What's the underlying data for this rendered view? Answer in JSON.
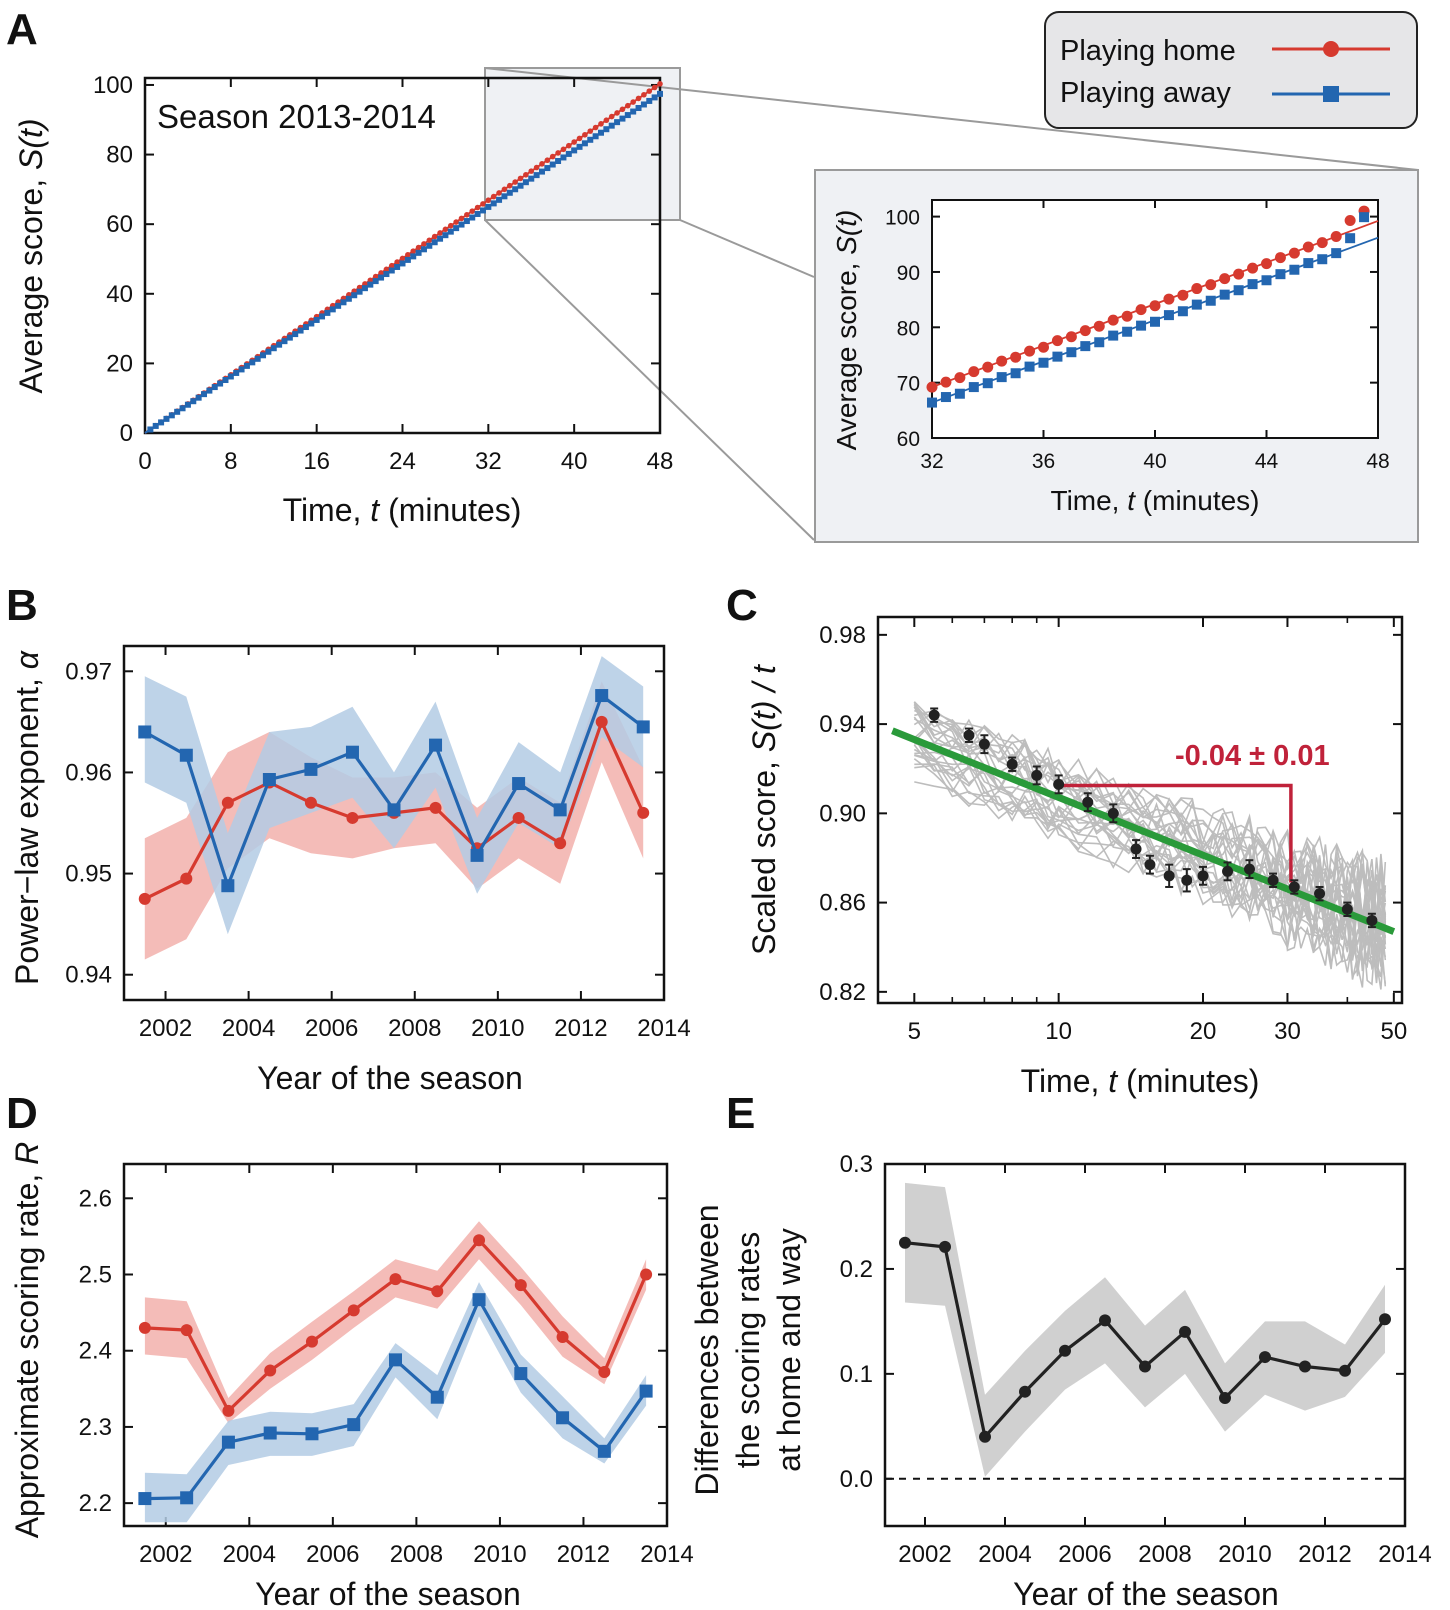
{
  "panels": {
    "A": {
      "letter": "A",
      "annotation": "Season 2013-2014",
      "xlabel_prefix": "Time, ",
      "xlabel_var": "t",
      "xlabel_suffix": " (minutes)",
      "ylabel_prefix": "Average score, ",
      "ylabel_var": "S(t)",
      "xticks": [
        "0",
        "8",
        "16",
        "24",
        "32",
        "40",
        "48"
      ],
      "yticks": [
        "0",
        "20",
        "40",
        "60",
        "80",
        "100"
      ],
      "inset_xticks": [
        "32",
        "36",
        "40",
        "44",
        "48"
      ],
      "inset_yticks": [
        "60",
        "70",
        "80",
        "90",
        "100"
      ]
    },
    "B": {
      "letter": "B",
      "xlabel": "Year of the season",
      "ylabel_prefix": "Power−law exponent, ",
      "ylabel_var": "α",
      "xticks": [
        "2002",
        "2004",
        "2006",
        "2008",
        "2010",
        "2012",
        "2014"
      ],
      "yticks": [
        "0.94",
        "0.95",
        "0.96",
        "0.97"
      ]
    },
    "C": {
      "letter": "C",
      "xlabel_prefix": "Time, ",
      "xlabel_var": "t",
      "xlabel_suffix": " (minutes)",
      "ylabel_prefix": "Scaled score, ",
      "ylabel_var": "S(t) / t",
      "annotation": "-0.04 ± 0.01",
      "xticks": [
        "5",
        "10",
        "20",
        "30",
        "50"
      ],
      "yticks": [
        "0.82",
        "0.86",
        "0.90",
        "0.94",
        "0.98"
      ]
    },
    "D": {
      "letter": "D",
      "xlabel": "Year of the season",
      "ylabel_prefix": "Approximate scoring rate, ",
      "ylabel_var": "R",
      "xticks": [
        "2002",
        "2004",
        "2006",
        "2008",
        "2010",
        "2012",
        "2014"
      ],
      "yticks": [
        "2.2",
        "2.3",
        "2.4",
        "2.5",
        "2.6"
      ]
    },
    "E": {
      "letter": "E",
      "xlabel": "Year of the season",
      "ylabel_line1": "Differences between",
      "ylabel_line2": "the scoring rates",
      "ylabel_line3": "at home and way",
      "xticks": [
        "2002",
        "2004",
        "2006",
        "2008",
        "2010",
        "2012",
        "2014"
      ],
      "yticks": [
        "0.0",
        "0.1",
        "0.2",
        "0.3"
      ]
    }
  },
  "legend": {
    "home_label": "Playing home",
    "away_label": "Playing away"
  },
  "colors": {
    "home": "#d63a2f",
    "away": "#2366b0",
    "home_band": "#f2b0ab",
    "away_band": "#b3cbe4",
    "trend": "#2a9a3a",
    "annotation": "#c0223a",
    "gray_lines": "#bdbdbd",
    "diff_band": "#c8c8c8"
  },
  "chart_data": [
    {
      "id": "A",
      "type": "scatter",
      "title": "Season 2013-2014",
      "xlabel": "Time, t (minutes)",
      "ylabel": "Average score, S(t)",
      "xlim": [
        0,
        48
      ],
      "ylim": [
        0,
        102
      ],
      "series": [
        {
          "name": "Playing home",
          "slope_per_minute": 2.09,
          "x_start": 0.5,
          "x_step": 0.5,
          "x_end": 48
        },
        {
          "name": "Playing away",
          "slope_per_minute": 2.03,
          "x_start": 0.5,
          "x_step": 0.5,
          "x_end": 48
        }
      ],
      "inset": {
        "xlim": [
          32,
          48
        ],
        "ylim": [
          60,
          103
        ],
        "series": [
          {
            "name": "Playing home",
            "x": [
              32,
              32.5,
              33,
              33.5,
              34,
              34.5,
              35,
              35.5,
              36,
              36.5,
              37,
              37.5,
              38,
              38.5,
              39,
              39.5,
              40,
              40.5,
              41,
              41.5,
              42,
              42.5,
              43,
              43.5,
              44,
              44.5,
              45,
              45.5,
              46,
              46.5,
              47,
              47.5
            ],
            "y": [
              69.2,
              70.1,
              70.9,
              72.0,
              72.8,
              73.9,
              74.6,
              75.7,
              76.4,
              77.6,
              78.3,
              79.4,
              80.2,
              81.3,
              82.0,
              83.2,
              83.9,
              85.1,
              85.8,
              87.0,
              87.7,
              88.8,
              89.6,
              90.7,
              91.5,
              92.6,
              93.4,
              94.5,
              95.3,
              96.4,
              99.3,
              101.0
            ]
          },
          {
            "name": "Playing away",
            "x": [
              32,
              32.5,
              33,
              33.5,
              34,
              34.5,
              35,
              35.5,
              36,
              36.5,
              37,
              37.5,
              38,
              38.5,
              39,
              39.5,
              40,
              40.5,
              41,
              41.5,
              42,
              42.5,
              43,
              43.5,
              44,
              44.5,
              45,
              45.5,
              46,
              46.5,
              47,
              47.5
            ],
            "y": [
              66.4,
              67.4,
              68.0,
              69.2,
              69.9,
              71.0,
              71.7,
              72.9,
              73.6,
              74.7,
              75.5,
              76.6,
              77.3,
              78.5,
              79.2,
              80.3,
              81.0,
              82.2,
              82.9,
              84.1,
              84.8,
              85.9,
              86.7,
              87.8,
              88.5,
              89.6,
              90.4,
              91.6,
              92.3,
              93.4,
              96.1,
              99.9
            ]
          }
        ]
      }
    },
    {
      "id": "B",
      "type": "line",
      "xlabel": "Year of the season",
      "ylabel": "Power−law exponent, α",
      "xlim": [
        2001,
        2014
      ],
      "ylim": [
        0.9375,
        0.9725
      ],
      "x": [
        2001.5,
        2002.5,
        2003.5,
        2004.5,
        2005.5,
        2006.5,
        2007.5,
        2008.5,
        2009.5,
        2010.5,
        2011.5,
        2012.5,
        2013.5
      ],
      "series": [
        {
          "name": "Playing home",
          "values": [
            0.9475,
            0.9495,
            0.957,
            0.959,
            0.957,
            0.9555,
            0.956,
            0.9565,
            0.9525,
            0.9555,
            0.953,
            0.965,
            0.956
          ],
          "lower": [
            0.9415,
            0.9435,
            0.9505,
            0.9535,
            0.952,
            0.9515,
            0.9525,
            0.953,
            0.9485,
            0.9515,
            0.949,
            0.961,
            0.9515
          ],
          "upper": [
            0.9535,
            0.9555,
            0.962,
            0.964,
            0.9615,
            0.9595,
            0.9595,
            0.96,
            0.9565,
            0.9595,
            0.957,
            0.969,
            0.9605
          ]
        },
        {
          "name": "Playing away",
          "values": [
            0.964,
            0.9617,
            0.9488,
            0.9593,
            0.9603,
            0.962,
            0.9563,
            0.9627,
            0.9518,
            0.9589,
            0.9563,
            0.9676,
            0.9645
          ],
          "lower": [
            0.959,
            0.957,
            0.944,
            0.9545,
            0.956,
            0.9575,
            0.9525,
            0.9585,
            0.948,
            0.955,
            0.9525,
            0.9635,
            0.9605
          ],
          "upper": [
            0.9695,
            0.9675,
            0.954,
            0.964,
            0.9645,
            0.9665,
            0.96,
            0.967,
            0.9555,
            0.963,
            0.96,
            0.9715,
            0.9685
          ]
        }
      ]
    },
    {
      "id": "C",
      "type": "scatter",
      "xlabel": "Time, t (minutes)",
      "ylabel": "Scaled score, S(t) / t",
      "xscale": "log",
      "xlim": [
        4.2,
        52
      ],
      "ylim": [
        0.815,
        0.988
      ],
      "means": {
        "x": [
          5.5,
          6.5,
          7.0,
          8.0,
          9.0,
          10.0,
          11.5,
          13.0,
          14.5,
          15.5,
          17.0,
          18.5,
          20.0,
          22.5,
          25.0,
          28.0,
          31.0,
          35.0,
          40.0,
          45.0
        ],
        "y": [
          0.944,
          0.935,
          0.931,
          0.922,
          0.917,
          0.913,
          0.905,
          0.9,
          0.884,
          0.877,
          0.872,
          0.87,
          0.872,
          0.874,
          0.875,
          0.87,
          0.867,
          0.864,
          0.857,
          0.852
        ],
        "err": [
          0.003,
          0.003,
          0.004,
          0.003,
          0.004,
          0.004,
          0.004,
          0.004,
          0.004,
          0.004,
          0.005,
          0.005,
          0.004,
          0.004,
          0.004,
          0.003,
          0.003,
          0.003,
          0.003,
          0.003
        ]
      },
      "trend": {
        "x": [
          4.5,
          50
        ],
        "y": [
          0.937,
          0.847
        ]
      },
      "annotation": {
        "text": "-0.04 ± 0.01",
        "bracket_x": [
          10.2,
          30.5
        ],
        "bracket_y": [
          0.9125,
          0.869
        ]
      }
    },
    {
      "id": "D",
      "type": "line",
      "xlabel": "Year of the season",
      "ylabel": "Approximate scoring rate, R",
      "xlim": [
        2001,
        2014
      ],
      "ylim": [
        2.17,
        2.645
      ],
      "x": [
        2001.5,
        2002.5,
        2003.5,
        2004.5,
        2005.5,
        2006.5,
        2007.5,
        2008.5,
        2009.5,
        2010.5,
        2011.5,
        2012.5,
        2013.5
      ],
      "series": [
        {
          "name": "Playing home",
          "values": [
            2.43,
            2.427,
            2.321,
            2.374,
            2.412,
            2.453,
            2.494,
            2.478,
            2.545,
            2.486,
            2.418,
            2.372,
            2.5
          ],
          "lower": [
            2.395,
            2.39,
            2.305,
            2.35,
            2.388,
            2.43,
            2.47,
            2.455,
            2.52,
            2.46,
            2.392,
            2.356,
            2.48
          ],
          "upper": [
            2.47,
            2.465,
            2.338,
            2.397,
            2.438,
            2.478,
            2.52,
            2.505,
            2.57,
            2.51,
            2.445,
            2.39,
            2.52
          ]
        },
        {
          "name": "Playing away",
          "values": [
            2.206,
            2.207,
            2.28,
            2.292,
            2.291,
            2.303,
            2.388,
            2.339,
            2.467,
            2.37,
            2.312,
            2.268,
            2.347
          ],
          "lower": [
            2.175,
            2.175,
            2.25,
            2.262,
            2.262,
            2.275,
            2.365,
            2.31,
            2.445,
            2.345,
            2.285,
            2.252,
            2.328
          ],
          "upper": [
            2.24,
            2.238,
            2.308,
            2.32,
            2.318,
            2.33,
            2.41,
            2.368,
            2.49,
            2.395,
            2.34,
            2.285,
            2.368
          ]
        }
      ]
    },
    {
      "id": "E",
      "type": "line",
      "xlabel": "Year of the season",
      "ylabel": "Differences between the scoring rates at home and way",
      "xlim": [
        2001,
        2014
      ],
      "ylim": [
        -0.045,
        0.3
      ],
      "x": [
        2001.5,
        2002.5,
        2003.5,
        2004.5,
        2005.5,
        2006.5,
        2007.5,
        2008.5,
        2009.5,
        2010.5,
        2011.5,
        2012.5,
        2013.5
      ],
      "series": [
        {
          "name": "",
          "values": [
            0.225,
            0.221,
            0.04,
            0.083,
            0.122,
            0.151,
            0.107,
            0.14,
            0.077,
            0.116,
            0.107,
            0.103,
            0.152
          ],
          "lower": [
            0.168,
            0.165,
            0.002,
            0.045,
            0.085,
            0.11,
            0.068,
            0.1,
            0.045,
            0.08,
            0.065,
            0.078,
            0.12
          ],
          "upper": [
            0.282,
            0.278,
            0.08,
            0.122,
            0.16,
            0.192,
            0.146,
            0.18,
            0.11,
            0.15,
            0.15,
            0.128,
            0.185
          ]
        }
      ],
      "reference_line": 0.0
    }
  ]
}
